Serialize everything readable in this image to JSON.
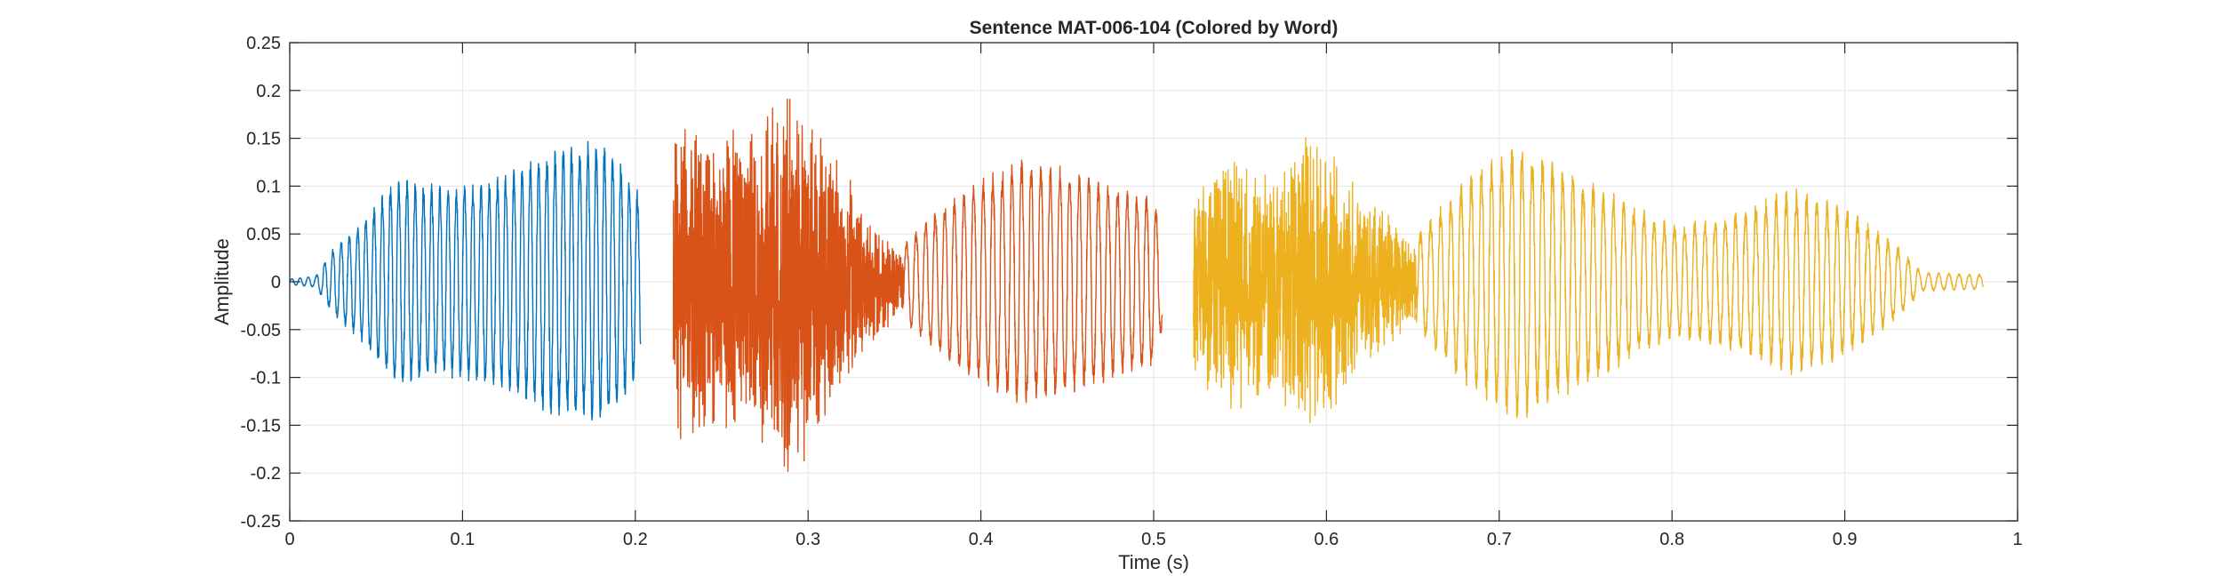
{
  "chart_data": {
    "type": "line",
    "title": "Sentence MAT-006-104 (Colored by Word)",
    "xlabel": "Time (s)",
    "ylabel": "Amplitude",
    "xlim": [
      0,
      1
    ],
    "ylim": [
      -0.25,
      0.25
    ],
    "xticks": [
      0,
      0.1,
      0.2,
      0.3,
      0.4,
      0.5,
      0.6,
      0.7,
      0.8,
      0.9,
      1
    ],
    "xtick_labels": [
      "0",
      "0.1",
      "0.2",
      "0.3",
      "0.4",
      "0.5",
      "0.6",
      "0.7",
      "0.8",
      "0.9",
      "1"
    ],
    "yticks": [
      0.25,
      0.2,
      0.15,
      0.1,
      0.05,
      0,
      -0.05,
      -0.1,
      -0.15,
      -0.2,
      -0.25
    ],
    "ytick_labels": [
      "0.25",
      "0.2",
      "0.15",
      "0.1",
      "0.05",
      "0",
      "-0.05",
      "-0.1",
      "-0.15",
      "-0.2",
      "-0.25"
    ],
    "grid": true,
    "series": [
      {
        "color": "#0072BD",
        "segments": [
          {
            "start": 0.0,
            "end": 0.203,
            "freq": 210,
            "noise": 0.12,
            "envelope": [
              [
                0.0,
                0.003
              ],
              [
                0.015,
                0.006
              ],
              [
                0.025,
                0.035
              ],
              [
                0.045,
                0.07
              ],
              [
                0.06,
                0.11
              ],
              [
                0.09,
                0.1
              ],
              [
                0.12,
                0.11
              ],
              [
                0.15,
                0.14
              ],
              [
                0.18,
                0.15
              ],
              [
                0.195,
                0.12
              ],
              [
                0.203,
                0.09
              ]
            ]
          }
        ]
      },
      {
        "color": "#D95319",
        "segments": [
          {
            "start": 0.222,
            "end": 0.355,
            "freq": 1400,
            "noise": 0.75,
            "envelope": [
              [
                0.222,
                0.17
              ],
              [
                0.24,
                0.16
              ],
              [
                0.27,
                0.17
              ],
              [
                0.29,
                0.21
              ],
              [
                0.305,
                0.17
              ],
              [
                0.32,
                0.12
              ],
              [
                0.34,
                0.06
              ],
              [
                0.355,
                0.03
              ]
            ]
          },
          {
            "start": 0.355,
            "end": 0.505,
            "freq": 180,
            "noise": 0.12,
            "envelope": [
              [
                0.355,
                0.04
              ],
              [
                0.37,
                0.07
              ],
              [
                0.4,
                0.11
              ],
              [
                0.425,
                0.13
              ],
              [
                0.45,
                0.12
              ],
              [
                0.48,
                0.1
              ],
              [
                0.5,
                0.09
              ],
              [
                0.505,
                0.05
              ]
            ]
          }
        ]
      },
      {
        "color": "#EDB120",
        "segments": [
          {
            "start": 0.523,
            "end": 0.652,
            "freq": 1400,
            "noise": 0.7,
            "envelope": [
              [
                0.523,
                0.1
              ],
              [
                0.545,
                0.14
              ],
              [
                0.57,
                0.12
              ],
              [
                0.59,
                0.17
              ],
              [
                0.61,
                0.12
              ],
              [
                0.63,
                0.08
              ],
              [
                0.652,
                0.04
              ]
            ]
          },
          {
            "start": 0.652,
            "end": 0.98,
            "freq": 170,
            "noise": 0.15,
            "envelope": [
              [
                0.652,
                0.05
              ],
              [
                0.68,
                0.11
              ],
              [
                0.71,
                0.15
              ],
              [
                0.74,
                0.12
              ],
              [
                0.77,
                0.09
              ],
              [
                0.8,
                0.06
              ],
              [
                0.83,
                0.07
              ],
              [
                0.87,
                0.1
              ],
              [
                0.9,
                0.08
              ],
              [
                0.93,
                0.04
              ],
              [
                0.945,
                0.01
              ],
              [
                0.98,
                0.008
              ]
            ]
          }
        ]
      }
    ]
  }
}
